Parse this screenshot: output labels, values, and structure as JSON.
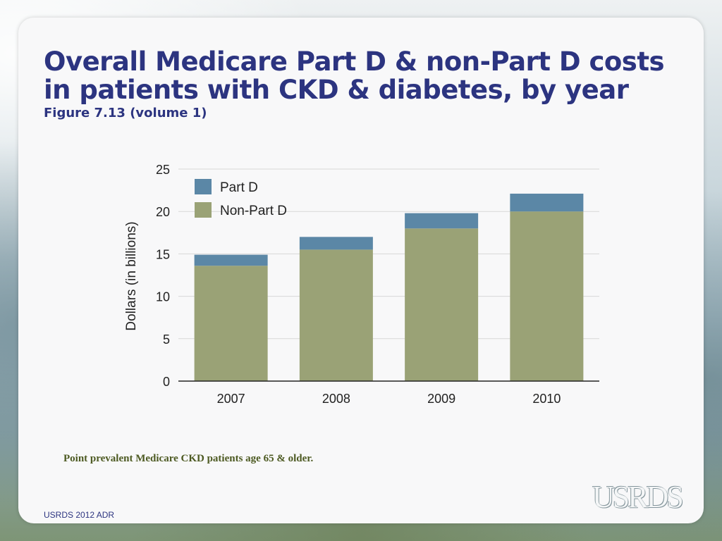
{
  "slide": {
    "title": "Overall Medicare Part D & non-Part D costs in patients with CKD &  diabetes, by year",
    "subtitle": "Figure 7.13 (volume 1)",
    "footnote": "Point prevalent Medicare CKD patients age 65 & older.",
    "footer": "USRDS 2012 ADR",
    "logo_text": "USRDS"
  },
  "colors": {
    "title": "#2c3480",
    "part_d": "#5b87a6",
    "non_part_d": "#9aa276",
    "grid": "#d7d7d7",
    "axis": "#222222"
  },
  "chart_data": {
    "type": "bar",
    "stacked": true,
    "title": "",
    "xlabel": "",
    "ylabel": "Dollars (in billions)",
    "ylim": [
      0,
      25
    ],
    "yticks": [
      0,
      5,
      10,
      15,
      20,
      25
    ],
    "grid": true,
    "legend_position": "top-left",
    "categories": [
      "2007",
      "2008",
      "2009",
      "2010"
    ],
    "series": [
      {
        "name": "Non-Part D",
        "color": "#9aa276",
        "values": [
          13.6,
          15.5,
          18.0,
          20.0
        ]
      },
      {
        "name": "Part D",
        "color": "#5b87a6",
        "values": [
          1.3,
          1.5,
          1.8,
          2.1
        ]
      }
    ],
    "legend": [
      "Part D",
      "Non-Part D"
    ]
  }
}
